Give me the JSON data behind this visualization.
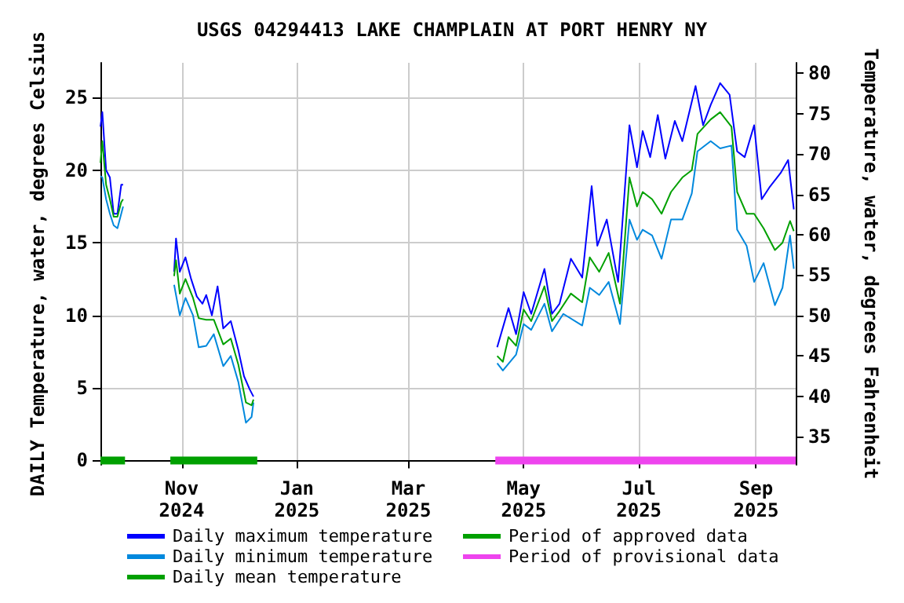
{
  "chart_data": {
    "type": "line",
    "title": "USGS 04294413 LAKE CHAMPLAIN AT PORT HENRY NY",
    "ylabel": "DAILY Temperature, water, degrees Celsius",
    "y2label": "Temperature, water, degrees Fahrenheit",
    "xlim": [
      "2024-09-19",
      "2025-09-22"
    ],
    "xticks": [
      {
        "value": "2024-11-01",
        "label": "Nov 2024"
      },
      {
        "value": "2025-01-01",
        "label": "Jan 2025"
      },
      {
        "value": "2025-03-01",
        "label": "Mar 2025"
      },
      {
        "value": "2025-05-01",
        "label": "May 2025"
      },
      {
        "value": "2025-07-01",
        "label": "Jul 2025"
      },
      {
        "value": "2025-09-01",
        "label": "Sep 2025"
      }
    ],
    "ylim": [
      -0.3,
      27.4
    ],
    "yticks": [
      0,
      5,
      10,
      15,
      20,
      25
    ],
    "y2lim": [
      31.5,
      81.3
    ],
    "y2ticks": [
      35,
      40,
      45,
      50,
      55,
      60,
      65,
      70,
      75,
      80
    ],
    "grid": true,
    "legend": "bottom",
    "marker": "none",
    "line_style": "solid",
    "series": [
      {
        "name": "Daily maximum temperature",
        "color": "#0000ff",
        "x": [
          "2024-09-19",
          "2024-09-20",
          "2024-09-22",
          "2024-09-24",
          "2024-09-26",
          "2024-09-28",
          "2024-09-30",
          "2024-10-01",
          "2024-10-15",
          "2024-10-28",
          "2024-10-29",
          "2024-10-31",
          "2024-11-03",
          "2024-11-06",
          "2024-11-09",
          "2024-11-12",
          "2024-11-14",
          "2024-11-17",
          "2024-11-20",
          "2024-11-23",
          "2024-11-27",
          "2024-12-01",
          "2024-12-04",
          "2024-12-07",
          "2024-12-09",
          "2025-02-01",
          "2025-04-17",
          "2025-04-23",
          "2025-04-27",
          "2025-05-01",
          "2025-05-05",
          "2025-05-12",
          "2025-05-16",
          "2025-05-20",
          "2025-05-26",
          "2025-06-01",
          "2025-06-06",
          "2025-06-09",
          "2025-06-14",
          "2025-06-20",
          "2025-06-26",
          "2025-06-30",
          "2025-07-03",
          "2025-07-07",
          "2025-07-11",
          "2025-07-15",
          "2025-07-20",
          "2025-07-24",
          "2025-07-31",
          "2025-08-04",
          "2025-08-08",
          "2025-08-13",
          "2025-08-18",
          "2025-08-22",
          "2025-08-26",
          "2025-08-31",
          "2025-09-04",
          "2025-09-08",
          "2025-09-14",
          "2025-09-18",
          "2025-09-21"
        ],
        "values": [
          23,
          24,
          20,
          19.5,
          17,
          17,
          19,
          19,
          null,
          13,
          15.3,
          13,
          14,
          12.5,
          11.3,
          10.8,
          11.4,
          10,
          12,
          9.1,
          9.6,
          7.6,
          5.8,
          4.9,
          4.4,
          null,
          7.8,
          10.5,
          8.7,
          11.6,
          10.1,
          13.2,
          10.1,
          10.8,
          13.9,
          12.6,
          18.9,
          14.8,
          16.6,
          12.3,
          23.1,
          20.2,
          22.7,
          20.9,
          23.8,
          20.8,
          23.4,
          22,
          25.8,
          23.1,
          24.5,
          26,
          25.2,
          21.3,
          20.9,
          23.1,
          18,
          18.8,
          19.8,
          20.7,
          17.3
        ]
      },
      {
        "name": "Daily minimum temperature",
        "color": "#0088dd",
        "x": [
          "2024-09-19",
          "2024-09-20",
          "2024-09-22",
          "2024-09-24",
          "2024-09-26",
          "2024-09-28",
          "2024-09-30",
          "2024-10-01",
          "2024-10-15",
          "2024-10-28",
          "2024-10-31",
          "2024-11-03",
          "2024-11-07",
          "2024-11-10",
          "2024-11-14",
          "2024-11-18",
          "2024-11-23",
          "2024-11-27",
          "2024-12-01",
          "2024-12-05",
          "2024-12-08",
          "2024-12-09",
          "2025-02-01",
          "2025-04-17",
          "2025-04-20",
          "2025-04-27",
          "2025-05-01",
          "2025-05-05",
          "2025-05-12",
          "2025-05-16",
          "2025-05-22",
          "2025-06-01",
          "2025-06-05",
          "2025-06-10",
          "2025-06-15",
          "2025-06-21",
          "2025-06-26",
          "2025-06-30",
          "2025-07-03",
          "2025-07-08",
          "2025-07-13",
          "2025-07-18",
          "2025-07-24",
          "2025-07-29",
          "2025-08-01",
          "2025-08-08",
          "2025-08-13",
          "2025-08-19",
          "2025-08-22",
          "2025-08-27",
          "2025-08-31",
          "2025-09-05",
          "2025-09-11",
          "2025-09-15",
          "2025-09-19",
          "2025-09-21"
        ],
        "values": [
          19.6,
          19.5,
          18,
          17,
          16.2,
          16,
          17,
          17.5,
          null,
          12.1,
          10,
          11.2,
          10,
          7.8,
          7.9,
          8.7,
          6.5,
          7.2,
          5.4,
          2.6,
          3,
          4,
          null,
          6.7,
          6.2,
          7.3,
          9.4,
          9,
          10.8,
          8.9,
          10.1,
          9.3,
          11.9,
          11.4,
          12.3,
          9.4,
          16.6,
          15.2,
          15.9,
          15.5,
          13.9,
          16.6,
          16.6,
          18.4,
          21.3,
          22,
          21.5,
          21.7,
          15.9,
          14.8,
          12.3,
          13.6,
          10.7,
          11.9,
          15.5,
          13.2
        ]
      },
      {
        "name": "Daily mean temperature",
        "color": "#00a000",
        "x": [
          "2024-09-19",
          "2024-09-20",
          "2024-09-22",
          "2024-09-24",
          "2024-09-26",
          "2024-09-28",
          "2024-09-30",
          "2024-10-01",
          "2024-10-15",
          "2024-10-28",
          "2024-10-29",
          "2024-10-31",
          "2024-11-03",
          "2024-11-07",
          "2024-11-10",
          "2024-11-14",
          "2024-11-18",
          "2024-11-23",
          "2024-11-27",
          "2024-12-01",
          "2024-12-05",
          "2024-12-08",
          "2024-12-09",
          "2025-02-01",
          "2025-04-17",
          "2025-04-20",
          "2025-04-23",
          "2025-04-27",
          "2025-05-01",
          "2025-05-05",
          "2025-05-12",
          "2025-05-16",
          "2025-05-20",
          "2025-05-26",
          "2025-06-01",
          "2025-06-05",
          "2025-06-10",
          "2025-06-15",
          "2025-06-21",
          "2025-06-26",
          "2025-06-30",
          "2025-07-03",
          "2025-07-08",
          "2025-07-13",
          "2025-07-18",
          "2025-07-24",
          "2025-07-29",
          "2025-08-01",
          "2025-08-08",
          "2025-08-13",
          "2025-08-19",
          "2025-08-22",
          "2025-08-27",
          "2025-08-31",
          "2025-09-05",
          "2025-09-11",
          "2025-09-15",
          "2025-09-19",
          "2025-09-21"
        ],
        "values": [
          20.5,
          22,
          19,
          18,
          16.8,
          16.8,
          17.8,
          18,
          null,
          12.7,
          13.8,
          11.5,
          12.5,
          11.2,
          9.8,
          9.7,
          9.7,
          8,
          8.4,
          6.6,
          4,
          3.8,
          4.2,
          null,
          7.2,
          6.8,
          8.5,
          7.9,
          10.4,
          9.6,
          12,
          9.6,
          10.3,
          11.5,
          10.9,
          14,
          13,
          14.3,
          10.8,
          19.5,
          17.5,
          18.5,
          18,
          17,
          18.5,
          19.5,
          20,
          22.5,
          23.5,
          24,
          23,
          18.5,
          17,
          17,
          16,
          14.5,
          15,
          16.5,
          15.8
        ]
      },
      {
        "name": "Period of approved data",
        "color": "#00a000",
        "x": [
          "2024-09-19",
          "2024-10-02",
          "2024-10-15",
          "2024-10-26",
          "2024-12-11"
        ],
        "values": [
          0,
          0,
          null,
          0,
          0
        ]
      },
      {
        "name": "Period of provisional data",
        "color": "#ee44ee",
        "x": [
          "2025-04-16",
          "2025-09-22"
        ],
        "values": [
          0,
          0
        ]
      }
    ]
  }
}
